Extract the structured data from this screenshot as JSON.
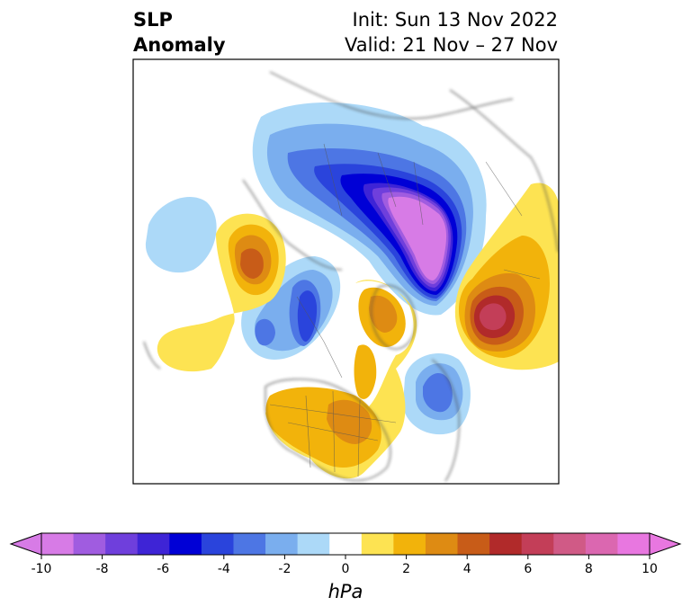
{
  "title": {
    "line1": "SLP",
    "line2": "Anomaly",
    "init": "Init: Sun 13 Nov 2022",
    "valid": "Valid: 21 Nov – 27 Nov"
  },
  "map": {
    "projection": "north-polar-stereographic",
    "field": "sea-level-pressure-anomaly",
    "features": [
      {
        "name": "pole-low",
        "value_hpa": -10,
        "description_pos": "arctic"
      },
      {
        "name": "siberia-low",
        "value_hpa": -5
      },
      {
        "name": "greenland-low",
        "value_hpa": -6
      },
      {
        "name": "pacific-high",
        "value_hpa": 4
      },
      {
        "name": "europe-high",
        "value_hpa": 6
      },
      {
        "name": "north-america-high",
        "value_hpa": 3
      },
      {
        "name": "atlantic-low",
        "value_hpa": -4
      }
    ]
  },
  "colorbar": {
    "unit": "hPa",
    "min": -10,
    "max": 10,
    "levels": [
      -10,
      -9,
      -8,
      -7,
      -6,
      -5,
      -4,
      -3,
      -2,
      -1,
      1,
      2,
      3,
      4,
      5,
      6,
      7,
      8,
      9,
      10
    ],
    "colors": [
      "#d77be6",
      "#a05ce0",
      "#6f3fdc",
      "#3e24d6",
      "#0000d6",
      "#2a44dc",
      "#4d76e4",
      "#7aaeee",
      "#acd9f8",
      "#ffffff",
      "#fde352",
      "#f2b30b",
      "#de8b13",
      "#c85c18",
      "#b12a2a",
      "#c33e58",
      "#d05a86",
      "#db67b0",
      "#e877e0"
    ],
    "extend_low_color": "#d77be6",
    "extend_high_color": "#e877e0",
    "ticks": [
      "-10",
      "-8",
      "-6",
      "-4",
      "-2",
      "0",
      "2",
      "4",
      "6",
      "8",
      "10"
    ]
  }
}
